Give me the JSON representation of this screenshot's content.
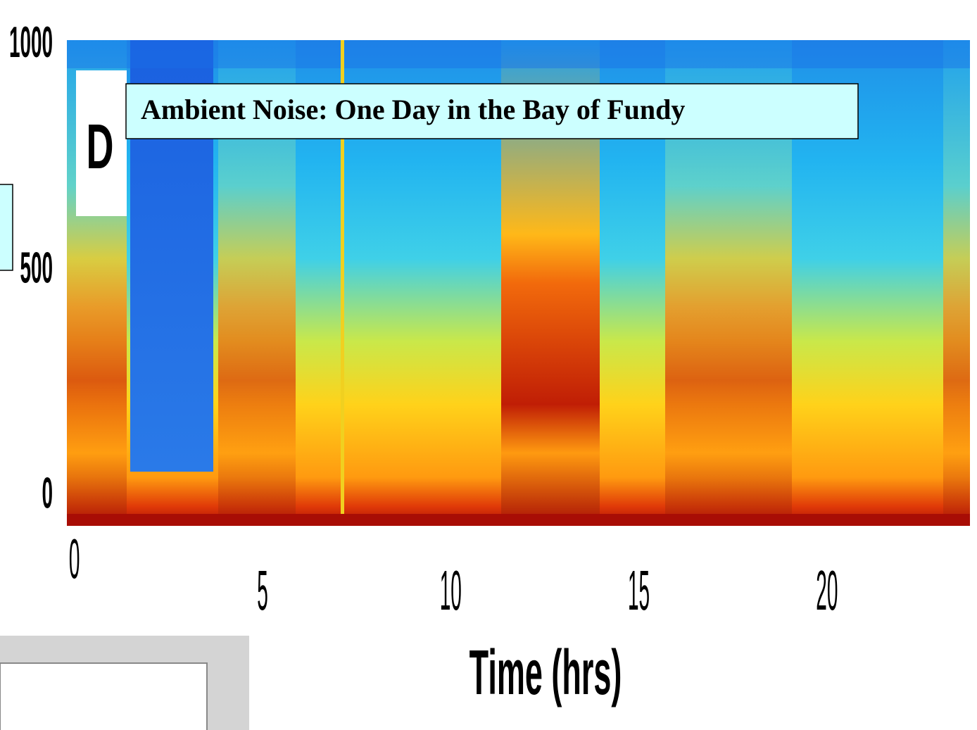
{
  "chart_data": {
    "type": "spectrogram",
    "title": "Ambient Noise: One Day in the Bay of Fundy",
    "panel_label": "D",
    "x_label": "Time (hrs)",
    "xlim": [
      -0.2,
      23.8
    ],
    "xticks": [
      0,
      5,
      10,
      15,
      20
    ],
    "ylim": [
      -65,
      1012
    ],
    "yticks": [
      0,
      500,
      1000
    ],
    "grid": false
  }
}
